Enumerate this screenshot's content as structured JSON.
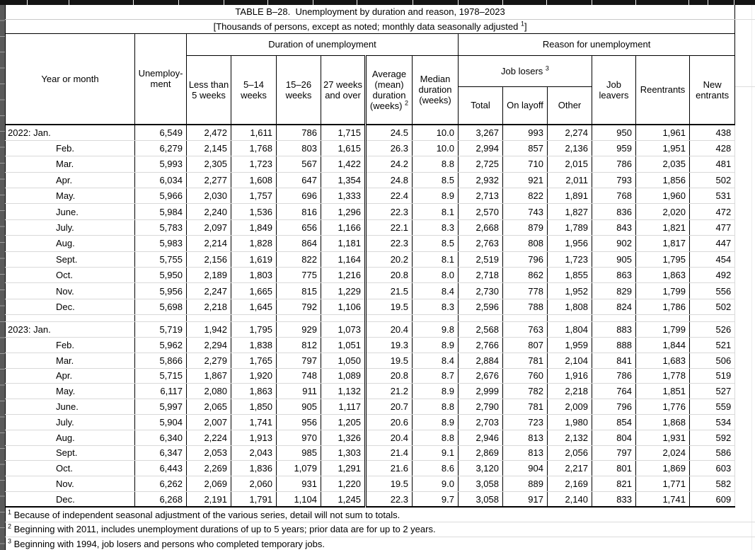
{
  "page": {
    "title": "TABLE B–28.  Unemployment by duration and reason, 1978–2023",
    "subtitle": {
      "text": "[Thousands of persons, except as noted; monthly data seasonally adjusted ",
      "sup": "1",
      "close": "]"
    }
  },
  "header": {
    "year": "Year or month",
    "unemployment_lines": [
      "Unemploy-",
      "ment"
    ],
    "duration_group": "Duration of unemployment",
    "reason_group": "Reason for unemployment",
    "less5_lines": [
      "Less than",
      "5 weeks"
    ],
    "w5_14_lines": [
      "5–14",
      "weeks"
    ],
    "w15_26_lines": [
      "15–26",
      "weeks"
    ],
    "w27_lines": [
      "27 weeks",
      "and over"
    ],
    "avg": {
      "lines": [
        "Average",
        "(mean)",
        "duration",
        "(weeks) "
      ],
      "sup": "2"
    },
    "median_lines": [
      "Median",
      "duration",
      "(weeks)"
    ],
    "job_losers": {
      "label": "Job losers ",
      "sup": "3"
    },
    "total": "Total",
    "on_layoff": "On layoff",
    "other": "Other",
    "job_leavers_lines": [
      "Job",
      "leavers"
    ],
    "reentrants": "Reentrants",
    "new_entrants_lines": [
      "New",
      "entrants"
    ]
  },
  "table": {
    "rows": [
      {
        "label": "2022: Jan.",
        "indent": false,
        "group": "g2022",
        "v": [
          "6,549",
          "2,472",
          "1,611",
          "786",
          "1,715",
          "24.5",
          "10.0",
          "3,267",
          "993",
          "2,274",
          "950",
          "1,961",
          "438"
        ]
      },
      {
        "label": "Feb.",
        "indent": true,
        "group": "g2022",
        "v": [
          "6,279",
          "2,145",
          "1,768",
          "803",
          "1,615",
          "26.3",
          "10.0",
          "2,994",
          "857",
          "2,136",
          "959",
          "1,951",
          "428"
        ]
      },
      {
        "label": "Mar.",
        "indent": true,
        "group": "g2022",
        "v": [
          "5,993",
          "2,305",
          "1,723",
          "567",
          "1,422",
          "24.2",
          "8.8",
          "2,725",
          "710",
          "2,015",
          "786",
          "2,035",
          "481"
        ]
      },
      {
        "label": "Apr.",
        "indent": true,
        "group": "g2022",
        "v": [
          "6,034",
          "2,277",
          "1,608",
          "647",
          "1,354",
          "24.8",
          "8.5",
          "2,932",
          "921",
          "2,011",
          "793",
          "1,856",
          "502"
        ]
      },
      {
        "label": "May.",
        "indent": true,
        "group": "g2022",
        "v": [
          "5,966",
          "2,030",
          "1,757",
          "696",
          "1,333",
          "22.4",
          "8.9",
          "2,713",
          "822",
          "1,891",
          "768",
          "1,960",
          "531"
        ]
      },
      {
        "label": "June.",
        "indent": true,
        "group": "g2022",
        "v": [
          "5,984",
          "2,240",
          "1,536",
          "816",
          "1,296",
          "22.3",
          "8.1",
          "2,570",
          "743",
          "1,827",
          "836",
          "2,020",
          "472"
        ]
      },
      {
        "label": "July.",
        "indent": true,
        "group": "g2022",
        "v": [
          "5,783",
          "2,097",
          "1,849",
          "656",
          "1,166",
          "22.1",
          "8.3",
          "2,668",
          "879",
          "1,789",
          "843",
          "1,821",
          "477"
        ]
      },
      {
        "label": "Aug.",
        "indent": true,
        "group": "g2022",
        "v": [
          "5,983",
          "2,214",
          "1,828",
          "864",
          "1,181",
          "22.3",
          "8.5",
          "2,763",
          "808",
          "1,956",
          "902",
          "1,817",
          "447"
        ]
      },
      {
        "label": "Sept.",
        "indent": true,
        "group": "g2022",
        "v": [
          "5,755",
          "2,156",
          "1,619",
          "822",
          "1,164",
          "20.2",
          "8.1",
          "2,519",
          "796",
          "1,723",
          "905",
          "1,795",
          "454"
        ]
      },
      {
        "label": "Oct.",
        "indent": true,
        "group": "g2022",
        "v": [
          "5,950",
          "2,189",
          "1,803",
          "775",
          "1,216",
          "20.8",
          "8.0",
          "2,718",
          "862",
          "1,855",
          "863",
          "1,863",
          "492"
        ]
      },
      {
        "label": "Nov.",
        "indent": true,
        "group": "g2022",
        "v": [
          "5,956",
          "2,247",
          "1,665",
          "815",
          "1,229",
          "21.5",
          "8.4",
          "2,730",
          "778",
          "1,952",
          "829",
          "1,799",
          "556"
        ]
      },
      {
        "label": "Dec.",
        "indent": true,
        "group": "g2022",
        "v": [
          "5,698",
          "2,218",
          "1,645",
          "792",
          "1,106",
          "19.5",
          "8.3",
          "2,596",
          "788",
          "1,808",
          "824",
          "1,786",
          "502"
        ]
      },
      {
        "label": "2023: Jan.",
        "indent": false,
        "gap_before": true,
        "group": "g2023",
        "v": [
          "5,719",
          "1,942",
          "1,795",
          "929",
          "1,073",
          "20.4",
          "9.8",
          "2,568",
          "763",
          "1,804",
          "883",
          "1,799",
          "526"
        ]
      },
      {
        "label": "Feb.",
        "indent": true,
        "group": "g2023",
        "v": [
          "5,962",
          "2,294",
          "1,838",
          "812",
          "1,051",
          "19.3",
          "8.9",
          "2,766",
          "807",
          "1,959",
          "888",
          "1,844",
          "521"
        ]
      },
      {
        "label": "Mar.",
        "indent": true,
        "group": "g2023",
        "v": [
          "5,866",
          "2,279",
          "1,765",
          "797",
          "1,050",
          "19.5",
          "8.4",
          "2,884",
          "781",
          "2,104",
          "841",
          "1,683",
          "506"
        ]
      },
      {
        "label": "Apr.",
        "indent": true,
        "group": "g2023",
        "v": [
          "5,715",
          "1,867",
          "1,920",
          "748",
          "1,089",
          "20.8",
          "8.7",
          "2,676",
          "760",
          "1,916",
          "786",
          "1,778",
          "519"
        ]
      },
      {
        "label": "May.",
        "indent": true,
        "group": "g2023",
        "v": [
          "6,117",
          "2,080",
          "1,863",
          "911",
          "1,132",
          "21.2",
          "8.9",
          "2,999",
          "782",
          "2,218",
          "764",
          "1,851",
          "527"
        ]
      },
      {
        "label": "June.",
        "indent": true,
        "group": "g2023",
        "v": [
          "5,997",
          "2,065",
          "1,850",
          "905",
          "1,117",
          "20.7",
          "8.8",
          "2,790",
          "781",
          "2,009",
          "796",
          "1,776",
          "559"
        ]
      },
      {
        "label": "July.",
        "indent": true,
        "group": "g2023",
        "v": [
          "5,904",
          "2,007",
          "1,741",
          "956",
          "1,205",
          "20.6",
          "8.9",
          "2,703",
          "723",
          "1,980",
          "854",
          "1,868",
          "534"
        ]
      },
      {
        "label": "Aug.",
        "indent": true,
        "group": "g2023",
        "v": [
          "6,340",
          "2,224",
          "1,913",
          "970",
          "1,326",
          "20.4",
          "8.8",
          "2,946",
          "813",
          "2,132",
          "804",
          "1,931",
          "592"
        ]
      },
      {
        "label": "Sept.",
        "indent": true,
        "group": "g2023",
        "v": [
          "6,347",
          "2,053",
          "2,043",
          "985",
          "1,303",
          "21.4",
          "9.1",
          "2,869",
          "813",
          "2,056",
          "797",
          "2,024",
          "586"
        ]
      },
      {
        "label": "Oct.",
        "indent": true,
        "group": "g2023",
        "v": [
          "6,443",
          "2,269",
          "1,836",
          "1,079",
          "1,291",
          "21.6",
          "8.6",
          "3,120",
          "904",
          "2,217",
          "801",
          "1,869",
          "603"
        ]
      },
      {
        "label": "Nov.",
        "indent": true,
        "group": "g2023",
        "v": [
          "6,262",
          "2,069",
          "2,060",
          "931",
          "1,220",
          "19.5",
          "9.0",
          "3,058",
          "889",
          "2,169",
          "821",
          "1,771",
          "582"
        ]
      },
      {
        "label": "Dec.",
        "indent": true,
        "group": "g2023",
        "v": [
          "6,268",
          "2,191",
          "1,791",
          "1,104",
          "1,245",
          "22.3",
          "9.7",
          "3,058",
          "917",
          "2,140",
          "833",
          "1,741",
          "609"
        ]
      }
    ]
  },
  "footnotes": [
    {
      "sup": "1",
      "text": "Because of independent seasonal adjustment of the various series, detail will not sum to totals."
    },
    {
      "sup": "2",
      "text": "Beginning with 2011, includes unemployment durations of up to 5 years; prior data are for up to 2 years."
    },
    {
      "sup": "3",
      "text": "Beginning with 1994, job losers and persons who completed temporary jobs."
    }
  ]
}
